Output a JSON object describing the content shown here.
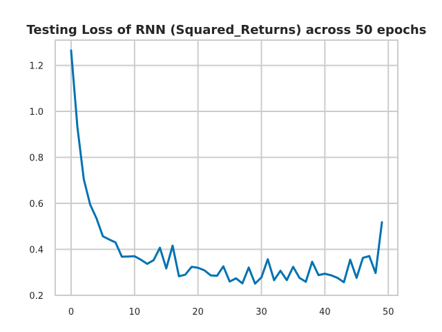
{
  "chart_data": {
    "type": "line",
    "title": "Testing Loss of RNN (Squared_Returns) across 50 epochs",
    "xlabel": "",
    "ylabel": "",
    "xlim": [
      -2.5,
      51.5
    ],
    "ylim": [
      0.2,
      1.31
    ],
    "x_ticks": [
      0,
      10,
      20,
      30,
      40,
      50
    ],
    "y_ticks": [
      0.2,
      0.4,
      0.6,
      0.8,
      1.0,
      1.2
    ],
    "x_tick_labels": [
      "0",
      "10",
      "20",
      "30",
      "40",
      "50"
    ],
    "y_tick_labels": [
      "0.2",
      "0.4",
      "0.6",
      "0.8",
      "1.0",
      "1.2"
    ],
    "grid": true,
    "legend": "none",
    "line_color": "#0072b2",
    "series": [
      {
        "x": [
          0,
          1,
          2,
          3,
          4,
          5,
          6,
          7,
          8,
          9,
          10,
          11,
          12,
          13,
          14,
          15,
          16,
          17,
          18,
          19,
          20,
          21,
          22,
          23,
          24,
          25,
          26,
          27,
          28,
          29,
          30,
          31,
          32,
          33,
          34,
          35,
          36,
          37,
          38,
          39,
          40,
          41,
          42,
          43,
          44,
          45,
          46,
          47,
          48,
          49
        ],
        "values": [
          1.265,
          0.93,
          0.705,
          0.595,
          0.535,
          0.457,
          0.443,
          0.43,
          0.368,
          0.369,
          0.37,
          0.355,
          0.337,
          0.353,
          0.407,
          0.317,
          0.416,
          0.283,
          0.29,
          0.324,
          0.32,
          0.309,
          0.287,
          0.285,
          0.326,
          0.26,
          0.274,
          0.252,
          0.321,
          0.251,
          0.278,
          0.357,
          0.266,
          0.307,
          0.266,
          0.324,
          0.276,
          0.259,
          0.346,
          0.288,
          0.294,
          0.287,
          0.276,
          0.257,
          0.355,
          0.276,
          0.363,
          0.371,
          0.297,
          0.518
        ]
      }
    ]
  }
}
